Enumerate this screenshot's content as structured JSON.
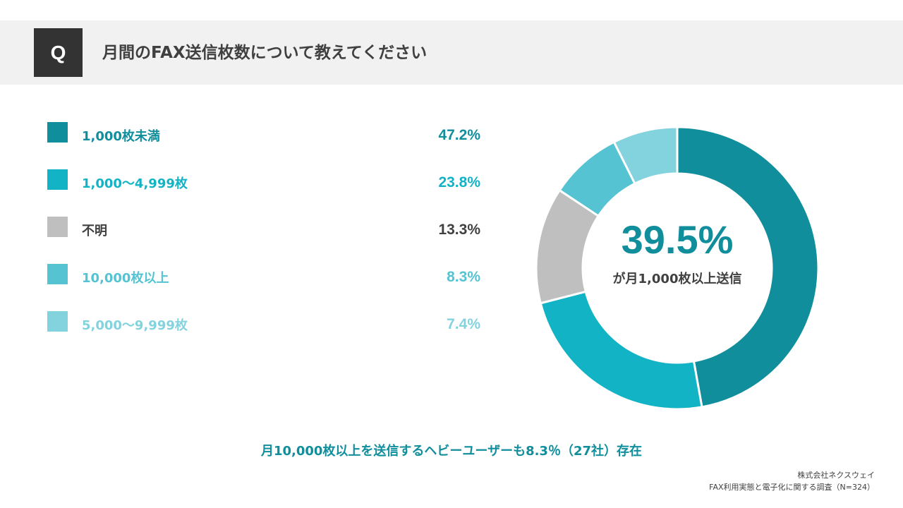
{
  "header": {
    "q_label": "Q",
    "title": "月間のFAX送信枚数について教えてください"
  },
  "chart_data": {
    "type": "pie",
    "categories": [
      "1,000枚未満",
      "1,000〜4,999枚",
      "不明",
      "10,000枚以上",
      "5,000〜9,999枚"
    ],
    "value_labels": [
      "47.2%",
      "23.8%",
      "13.3%",
      "8.3%",
      "7.4%"
    ],
    "values": [
      47.2,
      23.8,
      13.3,
      8.3,
      7.4
    ],
    "colors": [
      "#118e9c",
      "#13b3c6",
      "#bfbfbf",
      "#55c3d2",
      "#83d3de"
    ],
    "center_value": "39.5%",
    "center_text": "が月1,000枚以上送信"
  },
  "footnote": "月10,000枚以上を送信するヘビーユーザーも8.3％（27社）存在",
  "source": {
    "company": "株式会社ネクスウェイ",
    "survey": "FAX利用実態と電子化に関する調査（N=324）"
  }
}
